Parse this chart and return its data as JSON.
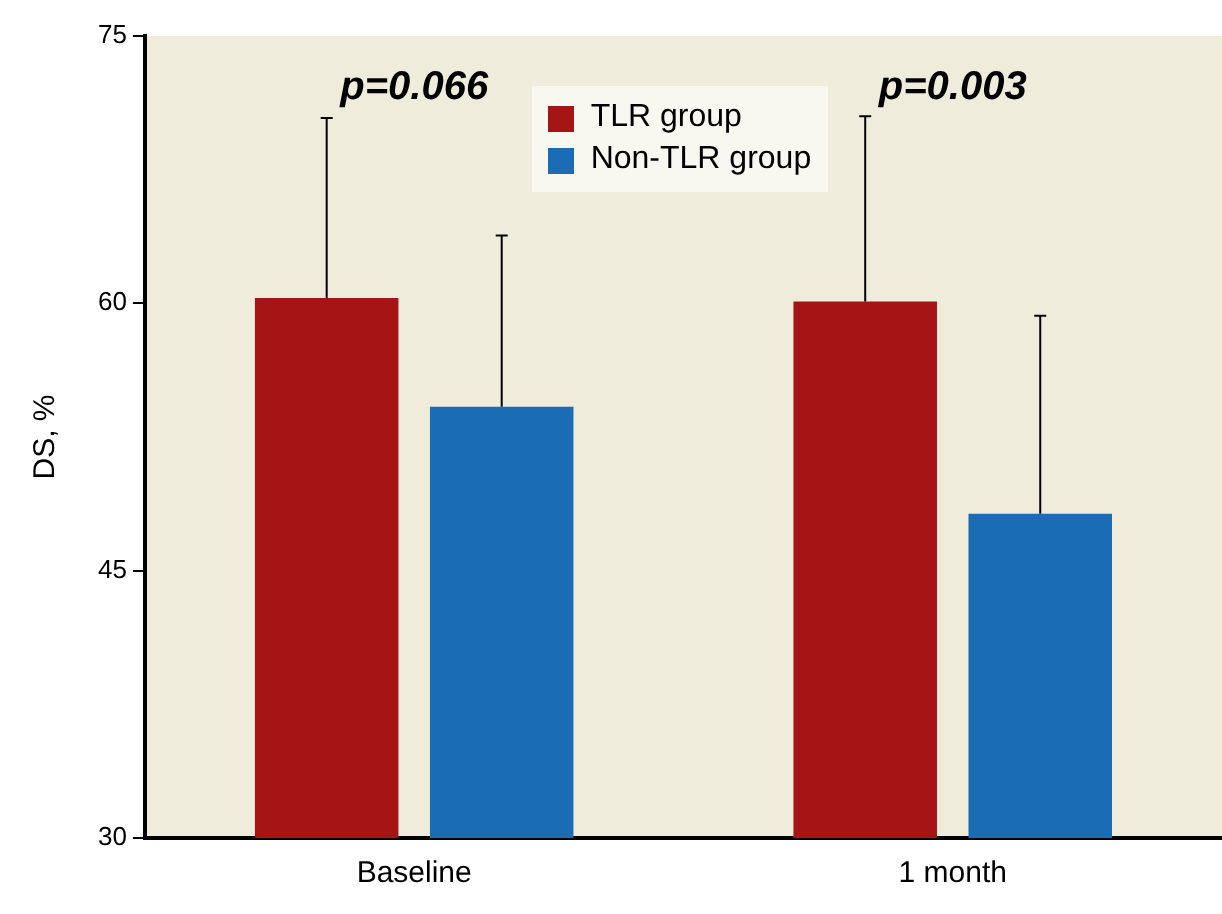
{
  "chart_data": {
    "type": "bar",
    "ylabel": "DS, %",
    "categories": [
      "Baseline",
      "1 month"
    ],
    "series": [
      {
        "name": "TLR group",
        "color": "#a51515",
        "values": [
          60.3,
          60.1
        ],
        "errors": [
          [
            60.3,
            70.4
          ],
          [
            60.1,
            70.5
          ]
        ]
      },
      {
        "name": "Non-TLR group",
        "color": "#1a6db5",
        "values": [
          54.2,
          48.2
        ],
        "errors": [
          [
            54.2,
            63.8
          ],
          [
            48.2,
            59.3
          ]
        ]
      }
    ],
    "ylim": [
      30,
      75
    ],
    "yticks": [
      30,
      45,
      60,
      75
    ],
    "grid": false,
    "legend": "top",
    "annotations": [
      "p=0.066",
      "p=0.003"
    ]
  }
}
